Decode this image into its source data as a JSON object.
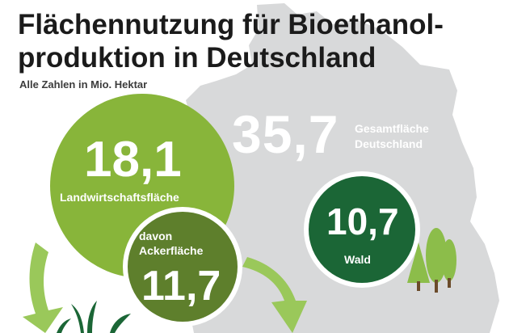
{
  "title": {
    "line1": "Flächennutzung für Bioethanol-",
    "line2": "produktion in Deutschland"
  },
  "subtitle": "Alle Zahlen in Mio. Hektar",
  "colors": {
    "map_gray": "#d8d9da",
    "agri_green": "#88b53a",
    "arable_green": "#5e7f2c",
    "forest_green": "#1b6636",
    "tree_green": "#8cbd4a",
    "arrow_green": "#9ac85a",
    "text_dark": "#1b1b1b"
  },
  "chart_data": {
    "type": "bubble",
    "unit": "Mio. Hektar",
    "items": [
      {
        "value": "35,7",
        "label_lines": [
          "Gesamtfläche",
          "Deutschland"
        ]
      },
      {
        "value": "18,1",
        "label": "Landwirtschaftsfläche"
      },
      {
        "value": "11,7",
        "label_lines": [
          "davon",
          "Ackerfläche"
        ]
      },
      {
        "value": "10,7",
        "label": "Wald"
      }
    ]
  },
  "icons": [
    "germany-map-icon",
    "tree-icon",
    "plant-icon",
    "arrow-icon"
  ]
}
